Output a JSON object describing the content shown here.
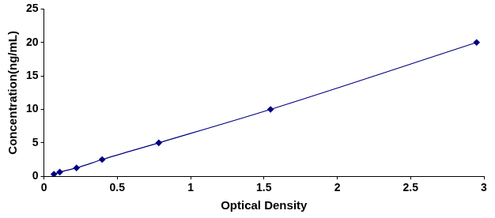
{
  "chart_data": {
    "type": "scatter",
    "x_label": "Optical Density",
    "y_label": "Concentration(ng/mL)",
    "x": [
      0.068,
      0.108,
      0.222,
      0.397,
      0.783,
      1.545,
      2.95
    ],
    "values": [
      0.312,
      0.625,
      1.25,
      2.5,
      5,
      10,
      20
    ],
    "color": "#000080",
    "marker": "diamond",
    "line_style": "solid",
    "xlim": [
      0,
      3
    ],
    "xticks": [
      0,
      0.5,
      1,
      1.5,
      2,
      2.5,
      3
    ],
    "ylim": [
      0,
      25
    ],
    "yticks": [
      0,
      5,
      10,
      15,
      20,
      25
    ],
    "grid": false
  }
}
